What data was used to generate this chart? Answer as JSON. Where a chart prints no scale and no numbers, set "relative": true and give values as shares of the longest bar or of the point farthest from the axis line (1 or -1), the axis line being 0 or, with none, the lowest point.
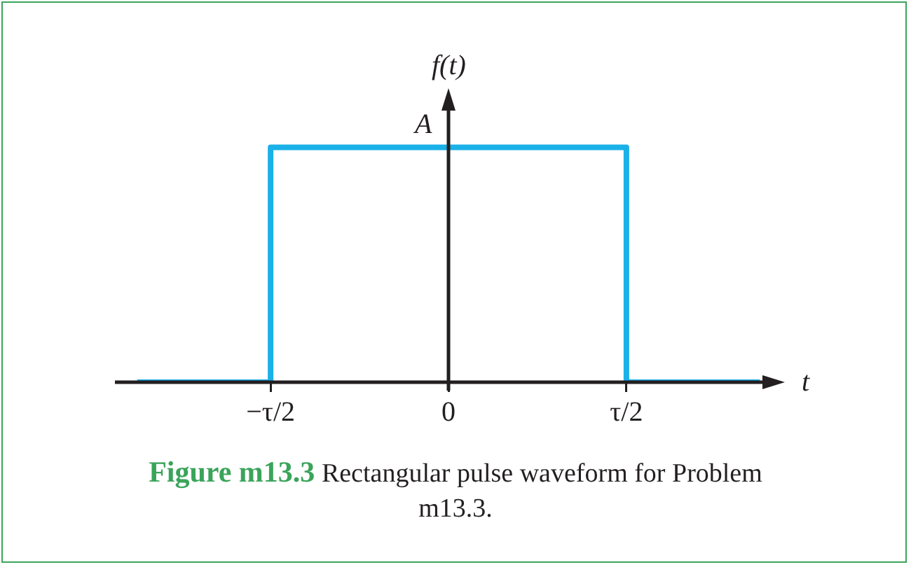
{
  "chart_data": {
    "type": "step",
    "relative": true,
    "xlabel": "t",
    "ylabel": "f(t)",
    "categories": [
      null,
      null,
      null,
      "−τ/2",
      null,
      null,
      null,
      "0",
      null,
      null,
      null,
      "τ/2",
      null,
      null,
      null
    ],
    "series": [
      {
        "color": "#1ab0e8",
        "values": [
          0,
          0,
          0,
          1,
          1,
          1,
          1,
          1,
          1,
          1,
          1,
          0,
          0,
          0,
          0
        ]
      }
    ],
    "marker": "none",
    "annotations": [
      {
        "text": "A",
        "x": "0",
        "y": 1
      },
      "Figure m13.3",
      "Rectangular pulse waveform for Problem m13.3."
    ]
  }
}
